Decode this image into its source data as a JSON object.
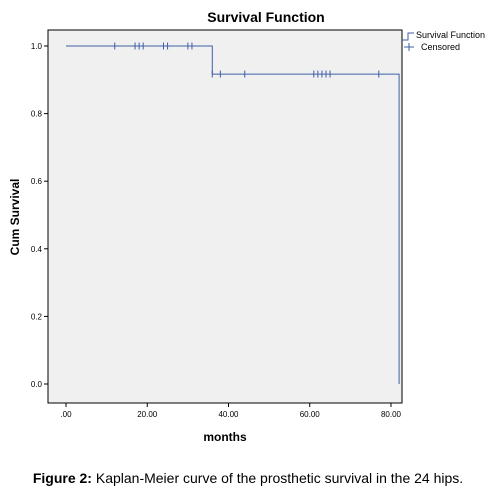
{
  "chart_data": {
    "type": "line",
    "title": "Survival Function",
    "xlabel": "months",
    "ylabel": "Cum Survival",
    "xlim": [
      0,
      82
    ],
    "ylim": [
      0,
      1.05
    ],
    "x_ticks": [
      0,
      20,
      40,
      60,
      80
    ],
    "x_tick_labels": [
      ".00",
      "20.00",
      "40.00",
      "60.00",
      "80.00"
    ],
    "y_ticks": [
      0,
      0.2,
      0.4,
      0.6,
      0.8,
      1.0
    ],
    "y_tick_labels": [
      "0.0",
      "0.2",
      "0.4",
      "0.6",
      "0.8",
      "1.0"
    ],
    "grid": false,
    "legend_position": "top-right",
    "legend": [
      "Survival Function",
      "Censored"
    ],
    "colors": {
      "line": "#3f5fa6",
      "plot_bg": "#f0f0f0",
      "axis": "#000000"
    },
    "series": [
      {
        "name": "Survival Function",
        "steps": [
          {
            "x": 0,
            "y": 1.0
          },
          {
            "x": 36,
            "y": 1.0
          },
          {
            "x": 36,
            "y": 0.917
          },
          {
            "x": 82,
            "y": 0.917
          },
          {
            "x": 82,
            "y": 0.0
          }
        ]
      },
      {
        "name": "Censored",
        "points": [
          {
            "x": 12,
            "y": 1.0
          },
          {
            "x": 17,
            "y": 1.0
          },
          {
            "x": 18,
            "y": 1.0
          },
          {
            "x": 19,
            "y": 1.0
          },
          {
            "x": 24,
            "y": 1.0
          },
          {
            "x": 25,
            "y": 1.0
          },
          {
            "x": 30,
            "y": 1.0
          },
          {
            "x": 31,
            "y": 1.0
          },
          {
            "x": 36,
            "y": 0.917
          },
          {
            "x": 38,
            "y": 0.917
          },
          {
            "x": 44,
            "y": 0.917
          },
          {
            "x": 61,
            "y": 0.917
          },
          {
            "x": 62,
            "y": 0.917
          },
          {
            "x": 63,
            "y": 0.917
          },
          {
            "x": 64,
            "y": 0.917
          },
          {
            "x": 65,
            "y": 0.917
          },
          {
            "x": 77,
            "y": 0.917
          }
        ]
      }
    ]
  },
  "caption": {
    "label": "Figure 2:",
    "text": " Kaplan-Meier curve of the prosthetic survival in the 24 hips."
  }
}
